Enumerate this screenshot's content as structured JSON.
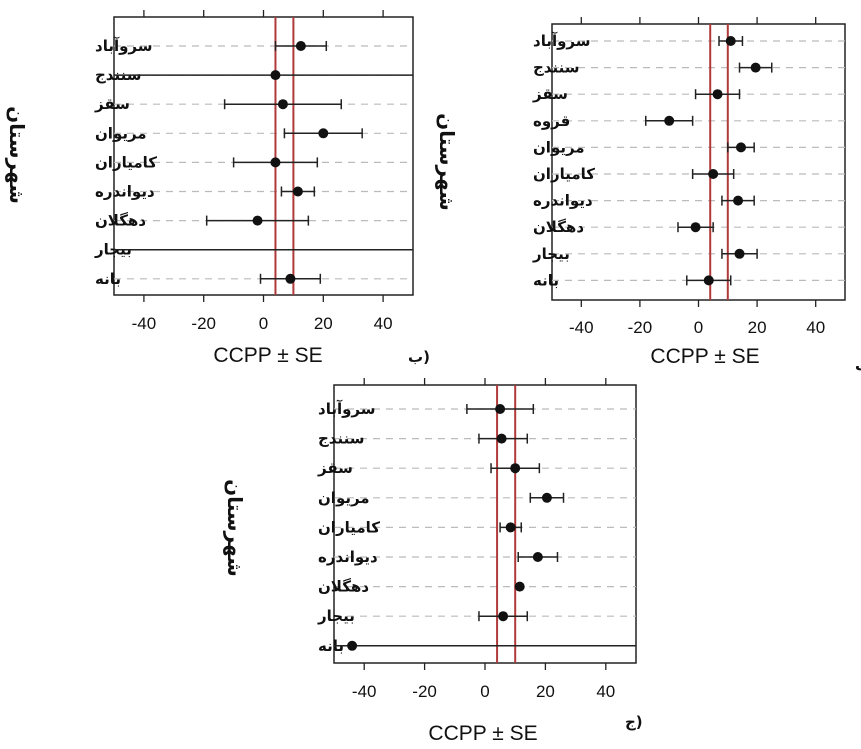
{
  "chart_data": [
    {
      "id": "alef",
      "type": "scatter",
      "panel_label": "(الف",
      "xlabel": "CCPP ± SE",
      "ylabel": "شهرستان",
      "xlim": [
        -50,
        50
      ],
      "xticks": [
        "-40",
        "-20",
        "0",
        "20",
        "40"
      ],
      "reference_lines": [
        4,
        10
      ],
      "grid": true,
      "series": [
        {
          "values": [
            {
              "category": "سروآباد",
              "x": 11,
              "lo": 7,
              "hi": 15
            },
            {
              "category": "سنندج",
              "x": 19.5,
              "lo": 14,
              "hi": 25
            },
            {
              "category": "سقز",
              "x": 6.5,
              "lo": -1,
              "hi": 14
            },
            {
              "category": "قروه",
              "x": -10,
              "lo": -18,
              "hi": -2
            },
            {
              "category": "مریوان",
              "x": 14.5,
              "lo": 10,
              "hi": 19
            },
            {
              "category": "کامیاران",
              "x": 5,
              "lo": -2,
              "hi": 12
            },
            {
              "category": "دیواندره",
              "x": 13.5,
              "lo": 8,
              "hi": 19
            },
            {
              "category": "دهگلان",
              "x": -1,
              "lo": -7,
              "hi": 5
            },
            {
              "category": "بیجار",
              "x": 14,
              "lo": 8,
              "hi": 20
            },
            {
              "category": "بانه",
              "x": 3.5,
              "lo": -4,
              "hi": 11
            }
          ]
        }
      ]
    },
    {
      "id": "be",
      "type": "scatter",
      "panel_label": "(ب",
      "xlabel": "CCPP ± SE",
      "ylabel": "شهرستان",
      "xlim": [
        -50,
        50
      ],
      "xticks": [
        "-40",
        "-20",
        "0",
        "20",
        "40"
      ],
      "reference_lines": [
        4,
        10
      ],
      "grid": true,
      "series": [
        {
          "values": [
            {
              "category": "سروآباد",
              "x": 12.5,
              "lo": 4,
              "hi": 21
            },
            {
              "category": "سنندج",
              "x": 4,
              "lo": -50,
              "hi": 50
            },
            {
              "category": "سقز",
              "x": 6.5,
              "lo": -13,
              "hi": 26
            },
            {
              "category": "مریوان",
              "x": 20,
              "lo": 7,
              "hi": 33
            },
            {
              "category": "کامیاران",
              "x": 4,
              "lo": -10,
              "hi": 18
            },
            {
              "category": "دیواندره",
              "x": 11.5,
              "lo": 6,
              "hi": 17
            },
            {
              "category": "دهگلان",
              "x": -2,
              "lo": -19,
              "hi": 15
            },
            {
              "category": "بیجار",
              "x": null,
              "lo": -50,
              "hi": 50
            },
            {
              "category": "بانه",
              "x": 9,
              "lo": -1,
              "hi": 19
            }
          ]
        }
      ]
    },
    {
      "id": "jim",
      "type": "scatter",
      "panel_label": "(ج",
      "xlabel": "CCPP ± SE",
      "ylabel": "شهرستان",
      "xlim": [
        -50,
        50
      ],
      "xticks": [
        "-40",
        "-20",
        "0",
        "20",
        "40"
      ],
      "reference_lines": [
        4,
        10
      ],
      "grid": true,
      "series": [
        {
          "values": [
            {
              "category": "سروآباد",
              "x": 5,
              "lo": -6,
              "hi": 16
            },
            {
              "category": "سنندج",
              "x": 5.5,
              "lo": -2,
              "hi": 14
            },
            {
              "category": "سقز",
              "x": 10,
              "lo": 2,
              "hi": 18
            },
            {
              "category": "مریوان",
              "x": 20.5,
              "lo": 15,
              "hi": 26
            },
            {
              "category": "کامیاران",
              "x": 8.5,
              "lo": 5,
              "hi": 12
            },
            {
              "category": "دیواندره",
              "x": 17.5,
              "lo": 11,
              "hi": 24
            },
            {
              "category": "دهگلان",
              "x": 11.5,
              "lo": 11.5,
              "hi": 11.5
            },
            {
              "category": "بیجار",
              "x": 6,
              "lo": -2,
              "hi": 14
            },
            {
              "category": "بانه",
              "x": -44,
              "lo": -50,
              "hi": 50
            }
          ]
        }
      ]
    }
  ]
}
